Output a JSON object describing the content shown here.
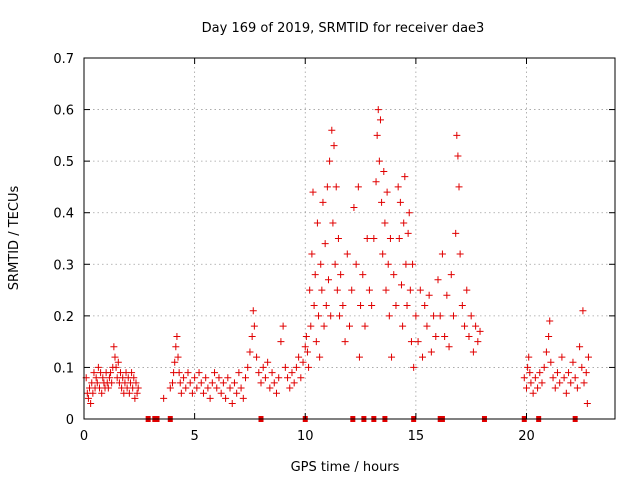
{
  "chart_data": {
    "type": "scatter",
    "title": "Day 169 of 2019, SRMTID for receiver dae3",
    "xlabel": "GPS time / hours",
    "ylabel": "SRMTID / TECUs",
    "xlim": [
      0,
      24
    ],
    "ylim": [
      0,
      0.7
    ],
    "xticks": [
      0,
      5,
      10,
      15,
      20
    ],
    "yticks": [
      0,
      0.1,
      0.2,
      0.3,
      0.4,
      0.5,
      0.6,
      0.7
    ],
    "xtick_labels": [
      "0",
      "5",
      "10",
      "15",
      "20"
    ],
    "ytick_labels": [
      "0",
      "0.1",
      "0.2",
      "0.3",
      "0.4",
      "0.5",
      "0.6",
      "0.7"
    ],
    "grid": true,
    "marker": "+",
    "color": "#e00000",
    "series": [
      {
        "name": "dae3",
        "points": [
          [
            0.1,
            0.08
          ],
          [
            0.15,
            0.05
          ],
          [
            0.2,
            0.04
          ],
          [
            0.25,
            0.06
          ],
          [
            0.3,
            0.03
          ],
          [
            0.35,
            0.07
          ],
          [
            0.4,
            0.05
          ],
          [
            0.45,
            0.09
          ],
          [
            0.5,
            0.06
          ],
          [
            0.55,
            0.08
          ],
          [
            0.6,
            0.07
          ],
          [
            0.65,
            0.1
          ],
          [
            0.7,
            0.06
          ],
          [
            0.75,
            0.09
          ],
          [
            0.8,
            0.05
          ],
          [
            0.85,
            0.08
          ],
          [
            0.9,
            0.07
          ],
          [
            0.95,
            0.06
          ],
          [
            1.0,
            0.09
          ],
          [
            1.05,
            0.07
          ],
          [
            1.1,
            0.06
          ],
          [
            1.15,
            0.08
          ],
          [
            1.2,
            0.09
          ],
          [
            1.25,
            0.07
          ],
          [
            1.3,
            0.1
          ],
          [
            1.35,
            0.14
          ],
          [
            1.4,
            0.12
          ],
          [
            1.45,
            0.1
          ],
          [
            1.5,
            0.08
          ],
          [
            1.55,
            0.11
          ],
          [
            1.6,
            0.07
          ],
          [
            1.65,
            0.09
          ],
          [
            1.7,
            0.06
          ],
          [
            1.75,
            0.08
          ],
          [
            1.8,
            0.05
          ],
          [
            1.85,
            0.07
          ],
          [
            1.9,
            0.09
          ],
          [
            1.95,
            0.06
          ],
          [
            2.0,
            0.08
          ],
          [
            2.05,
            0.05
          ],
          [
            2.1,
            0.07
          ],
          [
            2.15,
            0.09
          ],
          [
            2.2,
            0.06
          ],
          [
            2.25,
            0.08
          ],
          [
            2.3,
            0.04
          ],
          [
            2.35,
            0.07
          ],
          [
            2.4,
            0.05
          ],
          [
            2.45,
            0.06
          ],
          [
            3.6,
            0.04
          ],
          [
            3.9,
            0.06
          ],
          [
            4.0,
            0.07
          ],
          [
            4.05,
            0.09
          ],
          [
            4.1,
            0.11
          ],
          [
            4.15,
            0.14
          ],
          [
            4.2,
            0.16
          ],
          [
            4.25,
            0.12
          ],
          [
            4.3,
            0.09
          ],
          [
            4.35,
            0.07
          ],
          [
            4.4,
            0.05
          ],
          [
            4.5,
            0.08
          ],
          [
            4.6,
            0.06
          ],
          [
            4.7,
            0.09
          ],
          [
            4.8,
            0.07
          ],
          [
            4.9,
            0.05
          ],
          [
            5.0,
            0.08
          ],
          [
            5.1,
            0.06
          ],
          [
            5.2,
            0.09
          ],
          [
            5.3,
            0.07
          ],
          [
            5.4,
            0.05
          ],
          [
            5.5,
            0.08
          ],
          [
            5.6,
            0.06
          ],
          [
            5.7,
            0.04
          ],
          [
            5.8,
            0.07
          ],
          [
            5.9,
            0.09
          ],
          [
            6.0,
            0.06
          ],
          [
            6.1,
            0.08
          ],
          [
            6.2,
            0.05
          ],
          [
            6.3,
            0.07
          ],
          [
            6.4,
            0.04
          ],
          [
            6.5,
            0.08
          ],
          [
            6.6,
            0.06
          ],
          [
            6.7,
            0.03
          ],
          [
            6.8,
            0.07
          ],
          [
            6.9,
            0.05
          ],
          [
            7.0,
            0.09
          ],
          [
            7.1,
            0.06
          ],
          [
            7.2,
            0.04
          ],
          [
            7.3,
            0.08
          ],
          [
            7.4,
            0.1
          ],
          [
            7.5,
            0.13
          ],
          [
            7.6,
            0.16
          ],
          [
            7.65,
            0.21
          ],
          [
            7.7,
            0.18
          ],
          [
            7.8,
            0.12
          ],
          [
            7.9,
            0.09
          ],
          [
            8.0,
            0.07
          ],
          [
            8.1,
            0.1
          ],
          [
            8.2,
            0.08
          ],
          [
            8.3,
            0.11
          ],
          [
            8.4,
            0.06
          ],
          [
            8.5,
            0.09
          ],
          [
            8.6,
            0.07
          ],
          [
            8.7,
            0.05
          ],
          [
            8.8,
            0.08
          ],
          [
            8.9,
            0.15
          ],
          [
            9.0,
            0.18
          ],
          [
            9.1,
            0.1
          ],
          [
            9.2,
            0.08
          ],
          [
            9.3,
            0.06
          ],
          [
            9.4,
            0.09
          ],
          [
            9.5,
            0.07
          ],
          [
            9.6,
            0.1
          ],
          [
            9.7,
            0.12
          ],
          [
            9.8,
            0.08
          ],
          [
            9.9,
            0.11
          ],
          [
            10.0,
            0.14
          ],
          [
            10.05,
            0.16
          ],
          [
            10.1,
            0.13
          ],
          [
            10.15,
            0.1
          ],
          [
            10.2,
            0.25
          ],
          [
            10.25,
            0.18
          ],
          [
            10.3,
            0.32
          ],
          [
            10.35,
            0.44
          ],
          [
            10.4,
            0.22
          ],
          [
            10.45,
            0.28
          ],
          [
            10.5,
            0.15
          ],
          [
            10.55,
            0.38
          ],
          [
            10.6,
            0.2
          ],
          [
            10.65,
            0.12
          ],
          [
            10.7,
            0.3
          ],
          [
            10.75,
            0.25
          ],
          [
            10.8,
            0.42
          ],
          [
            10.85,
            0.18
          ],
          [
            10.9,
            0.34
          ],
          [
            10.95,
            0.22
          ],
          [
            11.0,
            0.45
          ],
          [
            11.05,
            0.27
          ],
          [
            11.1,
            0.5
          ],
          [
            11.15,
            0.2
          ],
          [
            11.2,
            0.56
          ],
          [
            11.25,
            0.38
          ],
          [
            11.3,
            0.53
          ],
          [
            11.35,
            0.3
          ],
          [
            11.4,
            0.45
          ],
          [
            11.45,
            0.25
          ],
          [
            11.5,
            0.35
          ],
          [
            11.55,
            0.2
          ],
          [
            11.6,
            0.28
          ],
          [
            11.7,
            0.22
          ],
          [
            11.8,
            0.15
          ],
          [
            11.9,
            0.32
          ],
          [
            12.0,
            0.18
          ],
          [
            12.1,
            0.25
          ],
          [
            12.2,
            0.41
          ],
          [
            12.3,
            0.3
          ],
          [
            12.4,
            0.45
          ],
          [
            12.45,
            0.12
          ],
          [
            12.5,
            0.22
          ],
          [
            12.6,
            0.28
          ],
          [
            12.7,
            0.18
          ],
          [
            12.8,
            0.35
          ],
          [
            12.9,
            0.25
          ],
          [
            13.0,
            0.22
          ],
          [
            13.1,
            0.35
          ],
          [
            13.2,
            0.46
          ],
          [
            13.25,
            0.55
          ],
          [
            13.3,
            0.6
          ],
          [
            13.35,
            0.5
          ],
          [
            13.4,
            0.58
          ],
          [
            13.45,
            0.42
          ],
          [
            13.5,
            0.32
          ],
          [
            13.55,
            0.48
          ],
          [
            13.6,
            0.38
          ],
          [
            13.65,
            0.25
          ],
          [
            13.7,
            0.44
          ],
          [
            13.75,
            0.3
          ],
          [
            13.8,
            0.2
          ],
          [
            13.85,
            0.35
          ],
          [
            13.9,
            0.12
          ],
          [
            14.0,
            0.28
          ],
          [
            14.1,
            0.22
          ],
          [
            14.2,
            0.45
          ],
          [
            14.25,
            0.35
          ],
          [
            14.3,
            0.42
          ],
          [
            14.35,
            0.26
          ],
          [
            14.4,
            0.18
          ],
          [
            14.45,
            0.38
          ],
          [
            14.5,
            0.47
          ],
          [
            14.55,
            0.3
          ],
          [
            14.6,
            0.22
          ],
          [
            14.65,
            0.36
          ],
          [
            14.7,
            0.4
          ],
          [
            14.75,
            0.25
          ],
          [
            14.8,
            0.15
          ],
          [
            14.85,
            0.3
          ],
          [
            14.9,
            0.1
          ],
          [
            15.0,
            0.2
          ],
          [
            15.1,
            0.15
          ],
          [
            15.2,
            0.25
          ],
          [
            15.3,
            0.12
          ],
          [
            15.4,
            0.22
          ],
          [
            15.5,
            0.18
          ],
          [
            15.6,
            0.24
          ],
          [
            15.7,
            0.13
          ],
          [
            15.8,
            0.2
          ],
          [
            15.9,
            0.16
          ],
          [
            16.0,
            0.27
          ],
          [
            16.1,
            0.2
          ],
          [
            16.2,
            0.32
          ],
          [
            16.3,
            0.16
          ],
          [
            16.4,
            0.24
          ],
          [
            16.5,
            0.14
          ],
          [
            16.6,
            0.28
          ],
          [
            16.7,
            0.2
          ],
          [
            16.8,
            0.36
          ],
          [
            16.85,
            0.55
          ],
          [
            16.9,
            0.51
          ],
          [
            16.95,
            0.45
          ],
          [
            17.0,
            0.32
          ],
          [
            17.1,
            0.22
          ],
          [
            17.2,
            0.18
          ],
          [
            17.3,
            0.25
          ],
          [
            17.4,
            0.16
          ],
          [
            17.5,
            0.2
          ],
          [
            17.6,
            0.13
          ],
          [
            17.7,
            0.18
          ],
          [
            17.8,
            0.15
          ],
          [
            17.9,
            0.17
          ],
          [
            19.9,
            0.08
          ],
          [
            20.0,
            0.06
          ],
          [
            20.05,
            0.1
          ],
          [
            20.1,
            0.12
          ],
          [
            20.15,
            0.09
          ],
          [
            20.2,
            0.07
          ],
          [
            20.3,
            0.05
          ],
          [
            20.4,
            0.08
          ],
          [
            20.5,
            0.06
          ],
          [
            20.6,
            0.09
          ],
          [
            20.7,
            0.07
          ],
          [
            20.8,
            0.1
          ],
          [
            20.9,
            0.13
          ],
          [
            21.0,
            0.16
          ],
          [
            21.05,
            0.19
          ],
          [
            21.1,
            0.11
          ],
          [
            21.2,
            0.08
          ],
          [
            21.3,
            0.06
          ],
          [
            21.4,
            0.09
          ],
          [
            21.5,
            0.07
          ],
          [
            21.6,
            0.12
          ],
          [
            21.7,
            0.08
          ],
          [
            21.8,
            0.05
          ],
          [
            21.9,
            0.09
          ],
          [
            22.0,
            0.07
          ],
          [
            22.1,
            0.11
          ],
          [
            22.2,
            0.08
          ],
          [
            22.3,
            0.06
          ],
          [
            22.4,
            0.14
          ],
          [
            22.5,
            0.1
          ],
          [
            22.55,
            0.21
          ],
          [
            22.6,
            0.07
          ],
          [
            22.7,
            0.09
          ],
          [
            22.75,
            0.03
          ],
          [
            22.8,
            0.12
          ]
        ]
      }
    ],
    "zero_points_x": [
      2.9,
      3.2,
      3.3,
      3.9,
      8.0,
      10.0,
      12.15,
      12.65,
      13.1,
      13.6,
      14.9,
      16.1,
      16.2,
      18.1,
      19.9,
      20.55,
      22.2
    ]
  }
}
